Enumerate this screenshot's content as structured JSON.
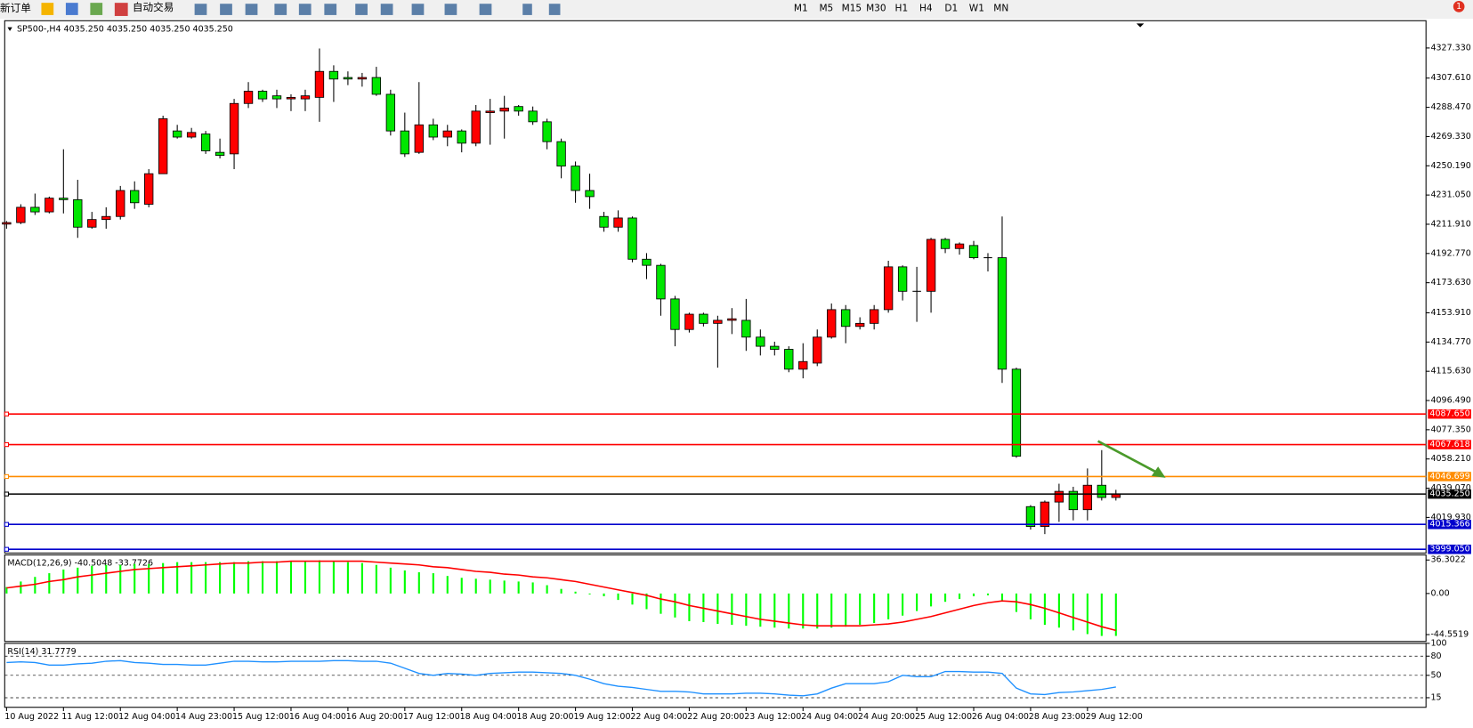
{
  "toolbar": {
    "new_order": "新订单",
    "auto_trading": "自动交易",
    "timeframes": [
      "M1",
      "M5",
      "M15",
      "M30",
      "H1",
      "H4",
      "D1",
      "W1",
      "MN"
    ],
    "badge": "1"
  },
  "chart_data": [
    {
      "type": "candlestick",
      "title": "SP500-,H4  4035.250 4035.250 4035.250 4035.250",
      "categories": [
        "10 Aug 2022",
        null,
        null,
        null,
        "11 Aug 12:00",
        null,
        null,
        null,
        "12 Aug 04:00",
        null,
        null,
        null,
        "14 Aug 23:00",
        null,
        null,
        null,
        "15 Aug 12:00",
        null,
        null,
        null,
        "16 Aug 04:00",
        null,
        null,
        null,
        "16 Aug 20:00",
        null,
        null,
        null,
        "17 Aug 12:00",
        null,
        null,
        null,
        "18 Aug 04:00",
        null,
        null,
        null,
        "18 Aug 20:00",
        null,
        null,
        null,
        "19 Aug 12:00",
        null,
        null,
        null,
        "22 Aug 04:00",
        null,
        null,
        null,
        "22 Aug 20:00",
        null,
        null,
        null,
        "23 Aug 12:00",
        null,
        null,
        null,
        "24 Aug 04:00",
        null,
        null,
        null,
        "24 Aug 20:00",
        null,
        null,
        null,
        "25 Aug 12:00",
        null,
        null,
        null,
        "26 Aug 04:00",
        null,
        null,
        null,
        "28 Aug 23:00",
        null,
        null,
        null,
        "29 Aug 12:00",
        null,
        null
      ],
      "open": [
        4212,
        4213,
        4223,
        4220,
        4229,
        4228,
        4210,
        4215,
        4217,
        4234,
        4225,
        4245,
        4273,
        4269,
        4271,
        4259,
        4258,
        4291,
        4299,
        4296,
        4294,
        4294,
        4295,
        4312,
        4308,
        4307,
        4308,
        4297,
        4273,
        4259,
        4277,
        4269,
        4273,
        4265,
        4285,
        4286,
        4289,
        4286,
        4279,
        4266,
        4250,
        4234,
        4217,
        4210,
        4216,
        4189,
        4185,
        4163,
        4143,
        4153,
        4147,
        4149,
        4149,
        4138,
        4132,
        4130,
        4117,
        4121,
        4138,
        4156,
        4145,
        4147,
        4156,
        4184,
        4168,
        4168,
        4202,
        4196,
        4198,
        4190,
        4190,
        4117,
        4027,
        4014,
        4030,
        4037,
        4025,
        4041,
        4033
      ],
      "high": [
        4214,
        4225,
        4232,
        4230,
        4261,
        4241,
        4220,
        4223,
        4237,
        4240,
        4248,
        4283,
        4277,
        4275,
        4273,
        4268,
        4294,
        4305,
        4300,
        4300,
        4297,
        4300,
        4327,
        4316,
        4312,
        4311,
        4315,
        4300,
        4285,
        4305,
        4281,
        4277,
        4274,
        4290,
        4294,
        4296,
        4290,
        4289,
        4281,
        4268,
        4253,
        4245,
        4220,
        4221,
        4217,
        4193,
        4186,
        4165,
        4154,
        4154,
        4152,
        4157,
        4163,
        4143,
        4135,
        4132,
        4134,
        4143,
        4160,
        4159,
        4151,
        4159,
        4188,
        4185,
        4184,
        4203,
        4203,
        4200,
        4201,
        4193,
        4217,
        4118,
        4028,
        4031,
        4042,
        4040,
        4052,
        4064,
        4038
      ],
      "low": [
        4209,
        4212,
        4218,
        4219,
        4219,
        4203,
        4209,
        4209,
        4215,
        4222,
        4223,
        4245,
        4268,
        4268,
        4258,
        4255,
        4248,
        4288,
        4292,
        4288,
        4286,
        4286,
        4279,
        4292,
        4303,
        4302,
        4296,
        4270,
        4256,
        4258,
        4267,
        4263,
        4259,
        4263,
        4264,
        4268,
        4283,
        4277,
        4261,
        4242,
        4226,
        4222,
        4207,
        4207,
        4187,
        4176,
        4152,
        4132,
        4141,
        4145,
        4118,
        4140,
        4129,
        4126,
        4126,
        4115,
        4111,
        4119,
        4137,
        4134,
        4143,
        4143,
        4154,
        4162,
        4148,
        4154,
        4193,
        4192,
        4189,
        4181,
        4108,
        4059,
        4012,
        4009,
        4017,
        4018,
        4018,
        4031,
        4031
      ],
      "close": [
        4213,
        4223,
        4220,
        4229,
        4228,
        4210,
        4215,
        4217,
        4234,
        4226,
        4245,
        4281,
        4269,
        4272,
        4260,
        4257,
        4291,
        4299,
        4294,
        4294,
        4295,
        4296,
        4312,
        4307,
        4307,
        4308,
        4297,
        4273,
        4258,
        4277,
        4269,
        4273,
        4265,
        4286,
        4286,
        4288,
        4286,
        4279,
        4266,
        4250,
        4234,
        4230,
        4210,
        4216,
        4189,
        4185,
        4163,
        4143,
        4153,
        4147,
        4149,
        4150,
        4138,
        4132,
        4130,
        4117,
        4122,
        4138,
        4156,
        4145,
        4147,
        4156,
        4184,
        4168,
        4168,
        4202,
        4196,
        4199,
        4190,
        4190,
        4117,
        4060,
        4014,
        4030,
        4037,
        4025,
        4041,
        4033,
        4035.25
      ],
      "up_color": "#ff0000",
      "down_color": "#00e600",
      "ylim": [
        3996.6,
        4345.2
      ],
      "yticks": [
        {
          "value": 4327.33,
          "label": "4327.330"
        },
        {
          "value": 4307.61,
          "label": "4307.610"
        },
        {
          "value": 4288.47,
          "label": "4288.470"
        },
        {
          "value": 4269.33,
          "label": "4269.330"
        },
        {
          "value": 4250.19,
          "label": "4250.190"
        },
        {
          "value": 4231.05,
          "label": "4231.050"
        },
        {
          "value": 4211.91,
          "label": "4211.910"
        },
        {
          "value": 4192.77,
          "label": "4192.770"
        },
        {
          "value": 4173.63,
          "label": "4173.630"
        },
        {
          "value": 4153.91,
          "label": "4153.910"
        },
        {
          "value": 4134.77,
          "label": "4134.770"
        },
        {
          "value": 4115.63,
          "label": "4115.630"
        },
        {
          "value": 4096.49,
          "label": "4096.490"
        },
        {
          "value": 4077.35,
          "label": "4077.350"
        },
        {
          "value": 4058.21,
          "label": "4058.210"
        },
        {
          "value": 4039.07,
          "label": "4039.070"
        },
        {
          "value": 4019.93,
          "label": "4019.930"
        }
      ],
      "levels": [
        {
          "value": 4087.65,
          "label": "4087.650",
          "color": "#ff0000"
        },
        {
          "value": 4067.618,
          "label": "4067.618",
          "color": "#ff0000"
        },
        {
          "value": 4046.699,
          "label": "4046.699",
          "color": "#ff8c00"
        },
        {
          "value": 4035.25,
          "label": "4035.250",
          "color": "#000000"
        },
        {
          "value": 4015.366,
          "label": "4015.366",
          "color": "#0000cd"
        },
        {
          "value": 3999.05,
          "label": "3999.050",
          "color": "#0000cd"
        }
      ]
    },
    {
      "type": "macd",
      "title": "MACD(12,26,9) -40.5048 -33.7726",
      "series": [
        {
          "type": "bar",
          "color": "#00ff00",
          "values": [
            7,
            13,
            18,
            22,
            26,
            28,
            30,
            31,
            31,
            32,
            32,
            33,
            34,
            34,
            34,
            34,
            34,
            35,
            35,
            35,
            35,
            35,
            36,
            35,
            34,
            33,
            31,
            28,
            25,
            23,
            22,
            19,
            17,
            16,
            15,
            14,
            13,
            12,
            9,
            5,
            2,
            -1,
            -3,
            -7,
            -12,
            -17,
            -22,
            -26,
            -30,
            -31,
            -33,
            -34,
            -35,
            -36,
            -37,
            -38,
            -38,
            -38,
            -37,
            -36,
            -34,
            -32,
            -28,
            -24,
            -19,
            -14,
            -9,
            -6,
            -3,
            -2,
            -8,
            -20,
            -28,
            -34,
            -37,
            -40,
            -44,
            -46,
            -46
          ]
        },
        {
          "type": "line",
          "color": "#ff0000",
          "values": [
            6,
            8,
            10,
            13,
            15,
            18,
            20,
            22,
            24,
            26,
            27,
            28,
            29,
            30,
            31,
            32,
            33,
            33,
            34,
            34,
            35,
            35,
            35,
            35,
            35,
            35,
            34,
            33,
            32,
            31,
            29,
            28,
            26,
            24,
            23,
            21,
            20,
            18,
            17,
            15,
            13,
            10,
            7,
            4,
            1,
            -2,
            -6,
            -9,
            -13,
            -16,
            -19,
            -22,
            -25,
            -28,
            -30,
            -32,
            -34,
            -35,
            -35,
            -35,
            -35,
            -34,
            -33,
            -31,
            -28,
            -25,
            -21,
            -17,
            -13,
            -10,
            -8,
            -9,
            -12,
            -16,
            -21,
            -26,
            -31,
            -36,
            -40
          ]
        }
      ],
      "ylim": [
        -52,
        41.8
      ],
      "yticks": [
        36.3022,
        {
          "value": 0,
          "label": "0.00"
        },
        -44.5519
      ]
    },
    {
      "type": "rsi",
      "title": "RSI(14) 31.7779",
      "series": [
        {
          "type": "line",
          "color": "#1e90ff",
          "values": [
            70,
            71,
            70,
            66,
            66,
            68,
            69,
            72,
            73,
            70,
            69,
            67,
            67,
            66,
            66,
            69,
            72,
            72,
            71,
            71,
            72,
            72,
            72,
            73,
            73,
            72,
            72,
            69,
            61,
            53,
            50,
            53,
            52,
            50,
            53,
            54,
            55,
            55,
            54,
            53,
            50,
            44,
            37,
            33,
            31,
            28,
            25,
            25,
            24,
            21,
            21,
            21,
            22,
            22,
            21,
            19,
            18,
            21,
            30,
            37,
            37,
            37,
            40,
            50,
            48,
            48,
            56,
            56,
            55,
            55,
            53,
            30,
            21,
            20,
            23,
            24,
            26,
            28,
            31.8
          ]
        }
      ],
      "ylim": [
        0,
        100
      ],
      "yticks": [
        100,
        80,
        50,
        15
      ],
      "levels": [
        80,
        50,
        15
      ]
    }
  ]
}
